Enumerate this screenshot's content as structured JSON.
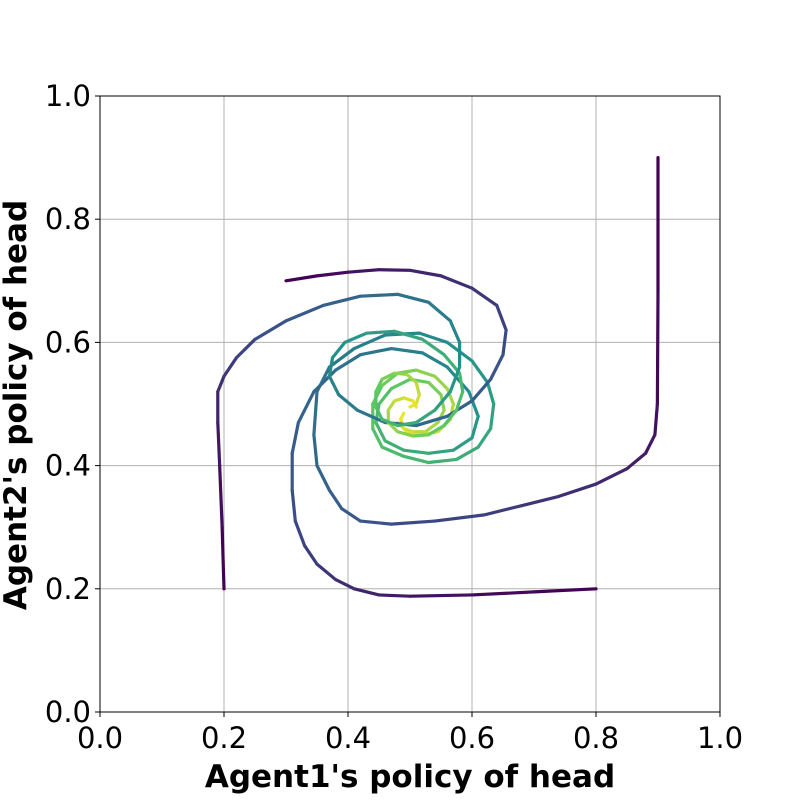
{
  "chart_data": {
    "type": "line",
    "title": "",
    "xlabel": "Agent1's policy of head",
    "ylabel": "Agent2's policy of head",
    "xlim": [
      0.0,
      1.0
    ],
    "ylim": [
      0.0,
      1.0
    ],
    "xticks": [
      "0.0",
      "0.2",
      "0.4",
      "0.6",
      "0.8",
      "1.0"
    ],
    "yticks": [
      "0.0",
      "0.2",
      "0.4",
      "0.6",
      "0.8",
      "1.0"
    ],
    "grid": true,
    "legend": "none",
    "colormap": [
      "#440154",
      "#3b528b",
      "#21918c",
      "#5ec962",
      "#fde725"
    ],
    "series": [
      {
        "x": [
          0.9,
          0.9,
          0.899,
          0.895,
          0.88,
          0.85,
          0.8,
          0.74,
          0.68,
          0.62,
          0.54,
          0.47,
          0.42,
          0.39,
          0.37,
          0.35,
          0.345,
          0.35,
          0.37,
          0.41,
          0.46,
          0.515,
          0.56,
          0.6,
          0.625,
          0.635,
          0.63,
          0.61,
          0.575,
          0.53,
          0.49,
          0.455,
          0.44,
          0.44,
          0.455,
          0.48,
          0.51,
          0.54,
          0.56,
          0.57,
          0.565,
          0.545,
          0.52,
          0.495,
          0.48
        ],
        "y": [
          0.9,
          0.68,
          0.5,
          0.45,
          0.42,
          0.395,
          0.37,
          0.35,
          0.335,
          0.32,
          0.31,
          0.305,
          0.31,
          0.33,
          0.36,
          0.4,
          0.45,
          0.52,
          0.56,
          0.59,
          0.612,
          0.615,
          0.6,
          0.57,
          0.535,
          0.5,
          0.46,
          0.43,
          0.41,
          0.405,
          0.415,
          0.43,
          0.46,
          0.5,
          0.53,
          0.55,
          0.555,
          0.545,
          0.525,
          0.5,
          0.475,
          0.455,
          0.45,
          0.455,
          0.47
        ]
      },
      {
        "x": [
          0.8,
          0.7,
          0.6,
          0.5,
          0.45,
          0.41,
          0.38,
          0.35,
          0.33,
          0.315,
          0.31,
          0.31,
          0.32,
          0.345,
          0.38,
          0.42,
          0.47,
          0.52,
          0.56,
          0.595,
          0.61,
          0.6,
          0.57,
          0.53,
          0.49,
          0.46,
          0.445,
          0.45,
          0.47,
          0.5,
          0.53,
          0.55,
          0.555,
          0.545,
          0.525,
          0.505,
          0.49,
          0.485,
          0.49
        ],
        "y": [
          0.2,
          0.195,
          0.19,
          0.188,
          0.19,
          0.2,
          0.215,
          0.24,
          0.27,
          0.31,
          0.36,
          0.42,
          0.47,
          0.52,
          0.555,
          0.58,
          0.59,
          0.583,
          0.56,
          0.52,
          0.48,
          0.445,
          0.425,
          0.42,
          0.425,
          0.44,
          0.47,
          0.5,
          0.525,
          0.54,
          0.535,
          0.515,
          0.49,
          0.47,
          0.455,
          0.455,
          0.46,
          0.475,
          0.485
        ]
      },
      {
        "x": [
          0.3,
          0.35,
          0.4,
          0.45,
          0.5,
          0.55,
          0.6,
          0.64,
          0.655,
          0.65,
          0.63,
          0.6,
          0.56,
          0.51,
          0.46,
          0.415,
          0.385,
          0.37,
          0.375,
          0.395,
          0.43,
          0.475,
          0.52,
          0.555,
          0.58,
          0.585,
          0.575,
          0.555,
          0.53,
          0.505,
          0.48,
          0.465,
          0.465,
          0.475,
          0.49,
          0.505,
          0.51
        ],
        "y": [
          0.7,
          0.708,
          0.714,
          0.718,
          0.717,
          0.708,
          0.688,
          0.66,
          0.62,
          0.58,
          0.54,
          0.505,
          0.48,
          0.465,
          0.47,
          0.49,
          0.515,
          0.545,
          0.575,
          0.6,
          0.615,
          0.618,
          0.605,
          0.58,
          0.55,
          0.52,
          0.49,
          0.465,
          0.45,
          0.448,
          0.455,
          0.47,
          0.49,
          0.505,
          0.51,
          0.505,
          0.495
        ]
      },
      {
        "x": [
          0.2,
          0.197,
          0.193,
          0.19,
          0.19,
          0.2,
          0.22,
          0.25,
          0.3,
          0.36,
          0.42,
          0.48,
          0.53,
          0.565,
          0.58,
          0.58,
          0.565,
          0.54,
          0.51,
          0.48,
          0.455,
          0.445,
          0.445,
          0.455,
          0.475,
          0.495,
          0.51,
          0.515,
          0.51,
          0.5
        ],
        "y": [
          0.2,
          0.3,
          0.4,
          0.47,
          0.52,
          0.545,
          0.575,
          0.605,
          0.635,
          0.66,
          0.675,
          0.678,
          0.665,
          0.635,
          0.6,
          0.56,
          0.52,
          0.49,
          0.47,
          0.465,
          0.475,
          0.495,
          0.52,
          0.54,
          0.55,
          0.548,
          0.535,
          0.515,
          0.5,
          0.495
        ]
      }
    ]
  }
}
